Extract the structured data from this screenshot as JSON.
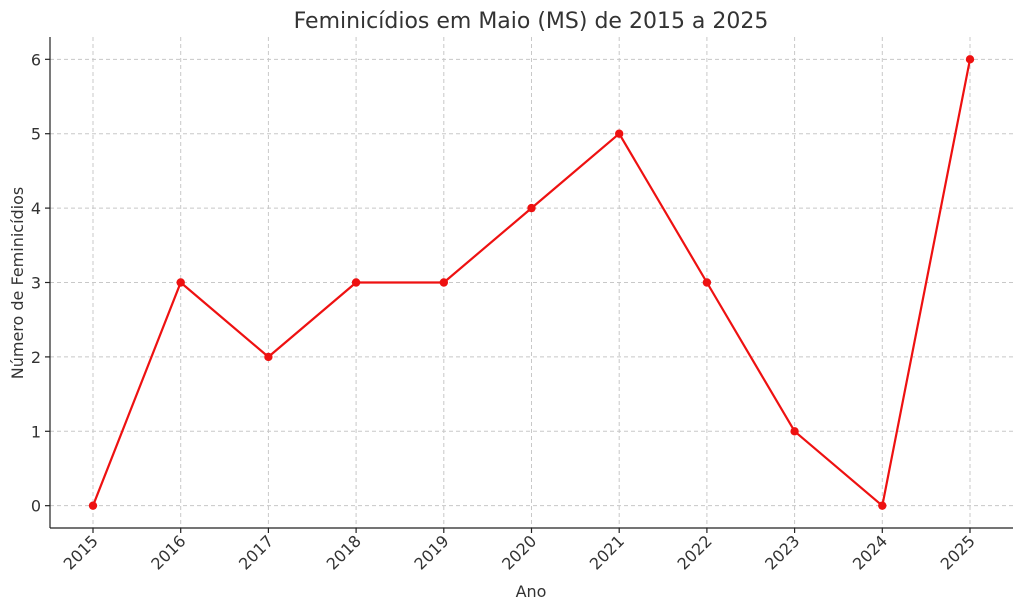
{
  "chart_data": {
    "type": "line",
    "title": "Feminicídios em Maio (MS) de 2015 a 2025",
    "xlabel": "Ano",
    "ylabel": "Número de Feminicídios",
    "x": [
      "2015",
      "2016",
      "2017",
      "2018",
      "2019",
      "2020",
      "2021",
      "2022",
      "2023",
      "2024",
      "2025"
    ],
    "series": [
      {
        "values": [
          0,
          3,
          2,
          3,
          3,
          4,
          5,
          3,
          1,
          0,
          6
        ],
        "color": "#ee1111"
      }
    ],
    "yticks": [
      0,
      1,
      2,
      3,
      4,
      5,
      6
    ],
    "ylim": [
      -0.3,
      6.3
    ],
    "grid": true,
    "marker": "circle"
  }
}
